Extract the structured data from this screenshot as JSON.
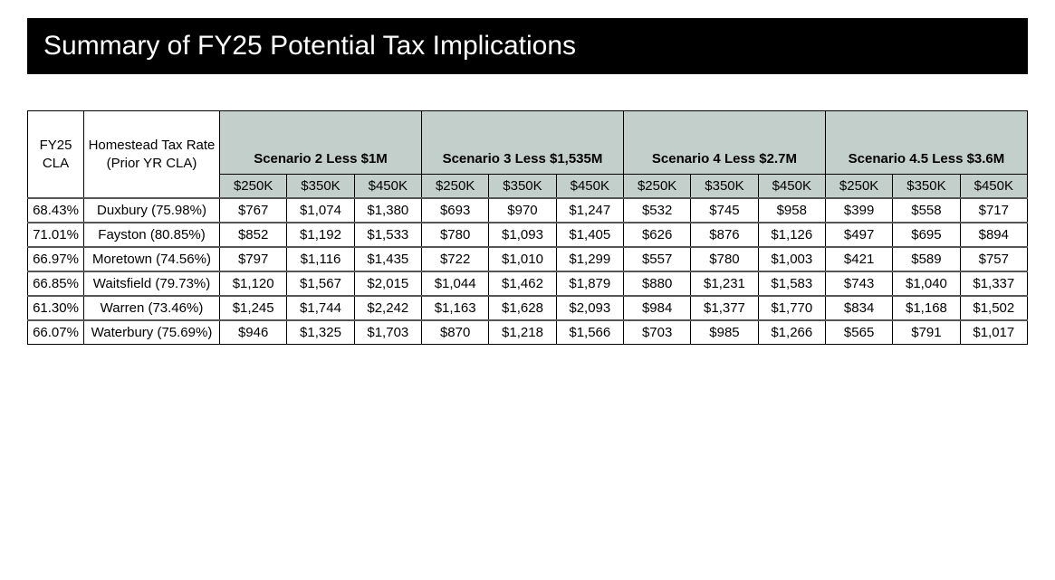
{
  "title": "Summary of FY25 Potential Tax Implications",
  "header": {
    "cla": "FY25 CLA",
    "town": "Homestead Tax Rate (Prior YR CLA)",
    "scenarios": [
      "Scenario 2 Less $1M",
      "Scenario 3 Less $1,535M",
      "Scenario 4 Less $2.7M",
      "Scenario 4.5 Less $3.6M"
    ],
    "amounts": [
      "$250K",
      "$350K",
      "$450K"
    ]
  },
  "rows": [
    {
      "cla": "68.43%",
      "town": "Duxbury (75.98%)",
      "v": [
        "$767",
        "$1,074",
        "$1,380",
        "$693",
        "$970",
        "$1,247",
        "$532",
        "$745",
        "$958",
        "$399",
        "$558",
        "$717"
      ]
    },
    {
      "cla": "71.01%",
      "town": "Fayston (80.85%)",
      "v": [
        "$852",
        "$1,192",
        "$1,533",
        "$780",
        "$1,093",
        "$1,405",
        "$626",
        "$876",
        "$1,126",
        "$497",
        "$695",
        "$894"
      ]
    },
    {
      "cla": "66.97%",
      "town": "Moretown (74.56%)",
      "v": [
        "$797",
        "$1,116",
        "$1,435",
        "$722",
        "$1,010",
        "$1,299",
        "$557",
        "$780",
        "$1,003",
        "$421",
        "$589",
        "$757"
      ]
    },
    {
      "cla": "66.85%",
      "town": "Waitsfield (79.73%)",
      "v": [
        "$1,120",
        "$1,567",
        "$2,015",
        "$1,044",
        "$1,462",
        "$1,879",
        "$880",
        "$1,231",
        "$1,583",
        "$743",
        "$1,040",
        "$1,337"
      ]
    },
    {
      "cla": "61.30%",
      "town": "Warren (73.46%)",
      "v": [
        "$1,245",
        "$1,744",
        "$2,242",
        "$1,163",
        "$1,628",
        "$2,093",
        "$984",
        "$1,377",
        "$1,770",
        "$834",
        "$1,168",
        "$1,502"
      ]
    },
    {
      "cla": "66.07%",
      "town": "Waterbury (75.69%)",
      "v": [
        "$946",
        "$1,325",
        "$1,703",
        "$870",
        "$1,218",
        "$1,566",
        "$703",
        "$985",
        "$1,266",
        "$565",
        "$791",
        "$1,017"
      ]
    }
  ]
}
